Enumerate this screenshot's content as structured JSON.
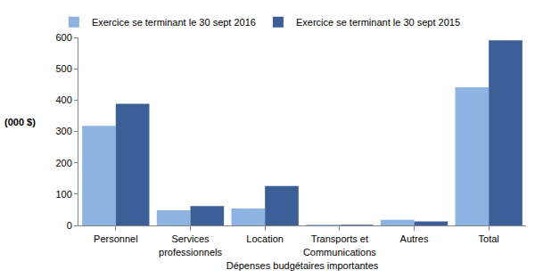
{
  "chart_data": {
    "type": "bar",
    "xlabel": "Dépenses budgétaires importantes",
    "ylabel": "(000 $)",
    "categories": [
      "Personnel",
      "Services professionnels",
      "Location",
      "Transports et Communications",
      "Autres",
      "Total"
    ],
    "series": [
      {
        "name": "Exercice se terminant le 30 sept 2016",
        "color": "#8db3e2",
        "values": [
          318,
          48,
          54,
          3,
          18,
          441
        ]
      },
      {
        "name": "Exercice se terminant le 30 sept 2015",
        "color": "#3b5f96",
        "values": [
          388,
          62,
          126,
          2,
          13,
          591
        ]
      }
    ],
    "ylim": [
      0,
      600
    ],
    "yticks": [
      0,
      100,
      200,
      300,
      400,
      500,
      600
    ],
    "grid": false,
    "legend": "top"
  }
}
